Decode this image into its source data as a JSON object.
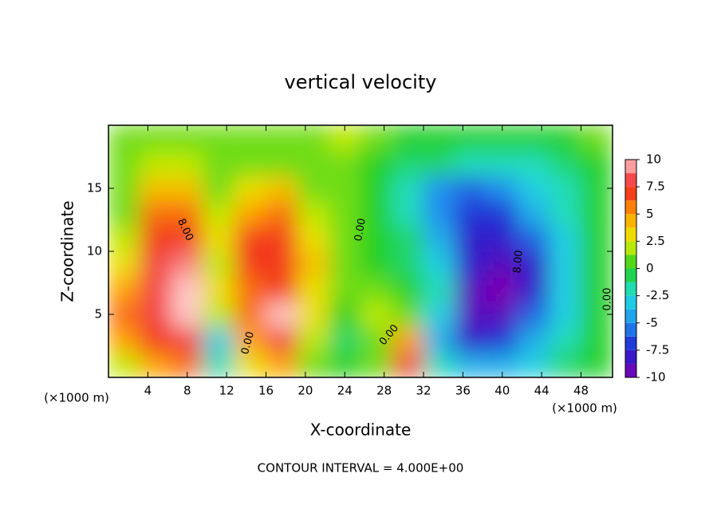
{
  "chart_data": {
    "type": "contourf",
    "title": "vertical velocity",
    "xlabel": "X-coordinate",
    "ylabel": "Z-coordinate",
    "x_unit": "(×1000 m)",
    "footer": "CONTOUR INTERVAL = 4.000E+00",
    "x": [
      1.6,
      4.8,
      8,
      11.2,
      14.4,
      17.6,
      20.8,
      24,
      27.2,
      30.4,
      33.6,
      36.8,
      40,
      43.2,
      46.4,
      49.6
    ],
    "y": [
      1,
      3,
      5,
      7,
      9,
      11,
      13,
      15,
      17,
      19
    ],
    "z": [
      [
        2,
        5,
        6,
        -2,
        3,
        5,
        1,
        0,
        1,
        8,
        -2,
        -4,
        -4,
        -3,
        -1,
        0
      ],
      [
        5,
        7,
        8,
        -3,
        5,
        8,
        2,
        -1,
        1,
        5,
        -4,
        -8,
        -7,
        -4,
        -2,
        0
      ],
      [
        6,
        8,
        10,
        2,
        6,
        10,
        3,
        0,
        2,
        1,
        -3,
        -9,
        -9,
        -6,
        -3,
        0
      ],
      [
        5,
        8,
        10,
        3,
        6,
        7,
        3,
        1,
        1,
        0,
        -2,
        -9,
        -10,
        -8,
        -3,
        0
      ],
      [
        3,
        8,
        9,
        2,
        7,
        7,
        4,
        1,
        0,
        -1,
        -3,
        -8,
        -9,
        -8,
        -3,
        0
      ],
      [
        2,
        7,
        7,
        3,
        7,
        7,
        3,
        1,
        0,
        -1,
        -4,
        -8,
        -8,
        -6,
        -3,
        0
      ],
      [
        1,
        6,
        6,
        2,
        5,
        6,
        2,
        1,
        0,
        -2,
        -5,
        -7,
        -7,
        -4,
        -2,
        0
      ],
      [
        1,
        4,
        4,
        1,
        3,
        4,
        1,
        1,
        0,
        -2,
        -5,
        -6,
        -5,
        -3,
        -2,
        0
      ],
      [
        1,
        2,
        2,
        1,
        1,
        1,
        1,
        1,
        0,
        -1,
        -1,
        -2,
        -2,
        -2,
        -1,
        0
      ],
      [
        1,
        1,
        1,
        1,
        1,
        1,
        1,
        2,
        1,
        0,
        0,
        0,
        0,
        0,
        0,
        1
      ]
    ],
    "xlim": [
      0,
      51.2
    ],
    "ylim": [
      0,
      20
    ],
    "xticks": [
      4,
      8,
      12,
      16,
      20,
      24,
      28,
      32,
      36,
      40,
      44,
      48
    ],
    "yticks": [
      5,
      10,
      15
    ],
    "clim": [
      -10,
      10
    ],
    "cticks": [
      10,
      7.5,
      5,
      2.5,
      0,
      -2.5,
      -5,
      -7.5,
      -10
    ],
    "colormap": [
      "#8000b0",
      "#2020d0",
      "#2090f0",
      "#20e0e0",
      "#20d020",
      "#e8f000",
      "#ffa000",
      "#f02020",
      "#ffc8c8"
    ],
    "contour_labels": [
      "8.00",
      "0.00",
      "0.00",
      "0.00",
      "8.00",
      "0.00"
    ]
  }
}
